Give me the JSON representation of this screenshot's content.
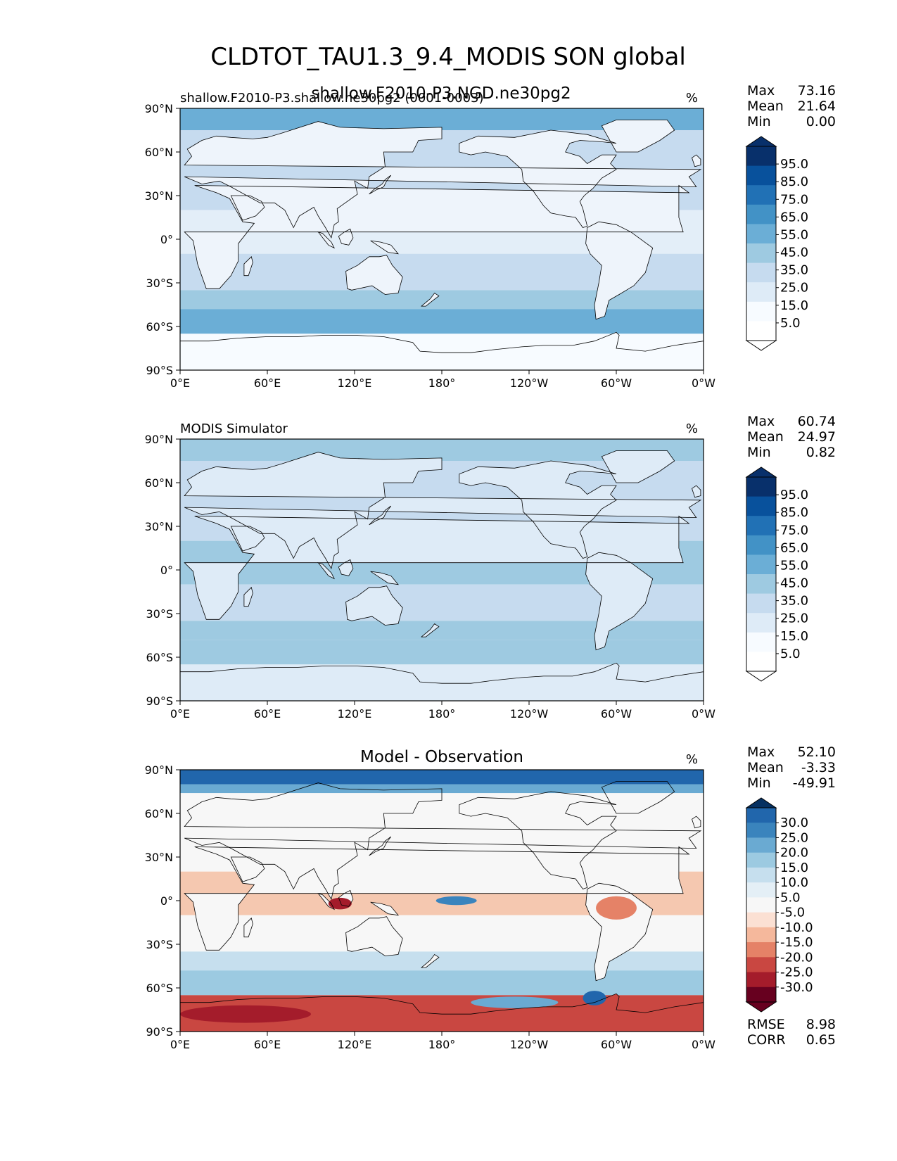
{
  "figure": {
    "title": "CLDTOT_TAU1.3_9.4_MODIS SON global",
    "subtitle_overlap": "shallow.F2010-P3.NGD.ne30pg2"
  },
  "chart_data": [
    {
      "type": "heatmap",
      "left_title": "shallow.F2010-P3.shallow.ne30pg2 (0001-0003)",
      "center_title": "",
      "units": "%",
      "stats": [
        {
          "label": "Max",
          "value": "73.16"
        },
        {
          "label": "Mean",
          "value": "21.64"
        },
        {
          "label": "Min",
          "value": "0.00"
        }
      ],
      "colorbar": {
        "labels": [
          "95.0",
          "85.0",
          "75.0",
          "65.0",
          "55.0",
          "45.0",
          "35.0",
          "25.0",
          "15.0",
          "5.0"
        ],
        "colors": [
          "#08306b",
          "#08519c",
          "#2171b5",
          "#4292c6",
          "#6baed6",
          "#9ecae1",
          "#c6dbef",
          "#deebf7",
          "#f7fbff",
          "#ffffff"
        ],
        "top_cap": "#08306b",
        "bottom_cap": "#ffffff"
      },
      "palette": {
        "ocean": "#c6dbef",
        "land": "#eef4fb",
        "tropic": "#e3eef8",
        "storm": "#9ecae1",
        "storm2": "#6baed6",
        "antarctica": "#f7fbff"
      },
      "xticks": [
        "0°E",
        "60°E",
        "120°E",
        "180°",
        "120°W",
        "60°W",
        "0°W"
      ],
      "yticks": [
        "90°N",
        "60°N",
        "30°N",
        "0°",
        "30°S",
        "60°S",
        "90°S"
      ],
      "xlim": [
        0,
        360
      ],
      "ylim": [
        -90,
        90
      ]
    },
    {
      "type": "heatmap",
      "left_title": "MODIS Simulator",
      "center_title": "",
      "units": "%",
      "stats": [
        {
          "label": "Max",
          "value": "60.74"
        },
        {
          "label": "Mean",
          "value": "24.97"
        },
        {
          "label": "Min",
          "value": "0.82"
        }
      ],
      "colorbar": {
        "labels": [
          "95.0",
          "85.0",
          "75.0",
          "65.0",
          "55.0",
          "45.0",
          "35.0",
          "25.0",
          "15.0",
          "5.0"
        ],
        "colors": [
          "#08306b",
          "#08519c",
          "#2171b5",
          "#4292c6",
          "#6baed6",
          "#9ecae1",
          "#c6dbef",
          "#deebf7",
          "#f7fbff",
          "#ffffff"
        ],
        "top_cap": "#08306b",
        "bottom_cap": "#ffffff"
      },
      "palette": {
        "ocean": "#c6dbef",
        "land": "#deebf7",
        "tropic": "#9ecae1",
        "storm": "#9ecae1",
        "storm2": "#9ecae1",
        "antarctica": "#deebf7"
      },
      "xticks": [
        "0°E",
        "60°E",
        "120°E",
        "180°",
        "120°W",
        "60°W",
        "0°W"
      ],
      "yticks": [
        "90°N",
        "60°N",
        "30°N",
        "0°",
        "30°S",
        "60°S",
        "90°S"
      ],
      "xlim": [
        0,
        360
      ],
      "ylim": [
        -90,
        90
      ]
    },
    {
      "type": "heatmap",
      "left_title": "",
      "center_title": "Model - Observation",
      "units": "%",
      "stats": [
        {
          "label": "Max",
          "value": "52.10"
        },
        {
          "label": "Mean",
          "value": "-3.33"
        },
        {
          "label": "Min",
          "value": "-49.91"
        }
      ],
      "colorbar": {
        "labels": [
          "30.0",
          "25.0",
          "20.0",
          "15.0",
          "10.0",
          "5.0",
          "-5.0",
          "-10.0",
          "-15.0",
          "-20.0",
          "-25.0",
          "-30.0"
        ],
        "colors": [
          "#2166ac",
          "#3a84bd",
          "#6aaad2",
          "#9ccae1",
          "#c6dfee",
          "#e4eff6",
          "#f7f7f7",
          "#fbe0d3",
          "#f5b89c",
          "#e58267",
          "#c94741",
          "#a41c2b",
          "#67001f"
        ],
        "top_cap": "#053061",
        "bottom_cap": "#67001f"
      },
      "palette": {
        "ocean": "#f7f7f7",
        "land": "#f7f7f7",
        "tropic": "#f5c8b0",
        "storm": "#c6dfee",
        "storm2": "#9ccae1",
        "antarctica": "#c94741"
      },
      "xticks": [
        "0°E",
        "60°E",
        "120°E",
        "180°",
        "120°W",
        "60°W",
        "0°W"
      ],
      "yticks": [
        "90°N",
        "60°N",
        "30°N",
        "0°",
        "30°S",
        "60°S",
        "90°S"
      ],
      "xlim": [
        0,
        360
      ],
      "ylim": [
        -90,
        90
      ],
      "extra_stats": [
        {
          "label": "RMSE",
          "value": "8.98"
        },
        {
          "label": "CORR",
          "value": "0.65"
        }
      ]
    }
  ]
}
